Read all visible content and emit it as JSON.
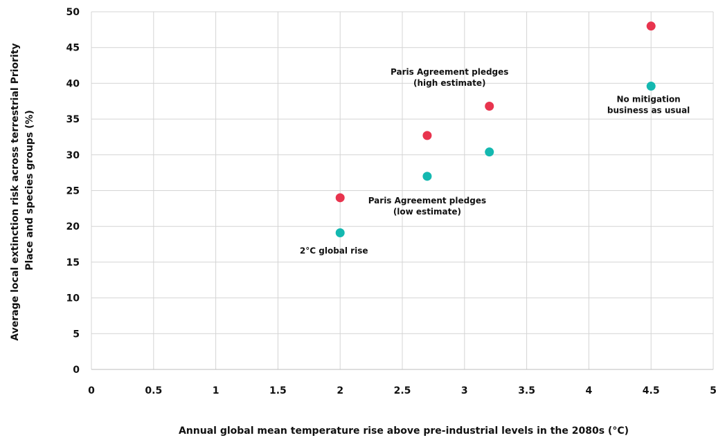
{
  "chart_data": {
    "type": "scatter",
    "title": "",
    "xlabel": "Annual global mean temperature rise above pre-industrial levels in the 2080s (°C)",
    "ylabel_lines": [
      "Average local extinction risk across terrestrial Priority",
      "Place and species groups (%)"
    ],
    "xlim": [
      0,
      5
    ],
    "ylim": [
      0,
      50
    ],
    "x_ticks": [
      "0",
      "0.5",
      "1",
      "1.5",
      "2",
      "2.5",
      "3",
      "3.5",
      "4",
      "4.5",
      "5"
    ],
    "y_ticks": [
      "0",
      "5",
      "10",
      "15",
      "20",
      "25",
      "30",
      "35",
      "40",
      "45",
      "50"
    ],
    "grid": true,
    "legend": "none",
    "series": [
      {
        "color": "#e8344e",
        "points": [
          {
            "x": 2,
            "y": 24
          },
          {
            "x": 2.7,
            "y": 32.7
          },
          {
            "x": 3.2,
            "y": 36.8
          },
          {
            "x": 4.5,
            "y": 48
          }
        ]
      },
      {
        "color": "#14b8b0",
        "points": [
          {
            "x": 2,
            "y": 19.1
          },
          {
            "x": 2.7,
            "y": 27
          },
          {
            "x": 3.2,
            "y": 30.4
          },
          {
            "x": 4.5,
            "y": 39.6
          }
        ]
      }
    ],
    "annotations": [
      {
        "lines": [
          "2°C global rise"
        ],
        "x": 1.95,
        "y": 16.2
      },
      {
        "lines": [
          "Paris Agreement pledges",
          "(low estimate)"
        ],
        "x": 2.7,
        "y": 23.2
      },
      {
        "lines": [
          "Paris Agreement pledges",
          "(high estimate)"
        ],
        "x": 2.88,
        "y": 41.2
      },
      {
        "lines": [
          "No mitigation",
          "business as usual"
        ],
        "x": 4.48,
        "y": 37.4
      }
    ]
  }
}
